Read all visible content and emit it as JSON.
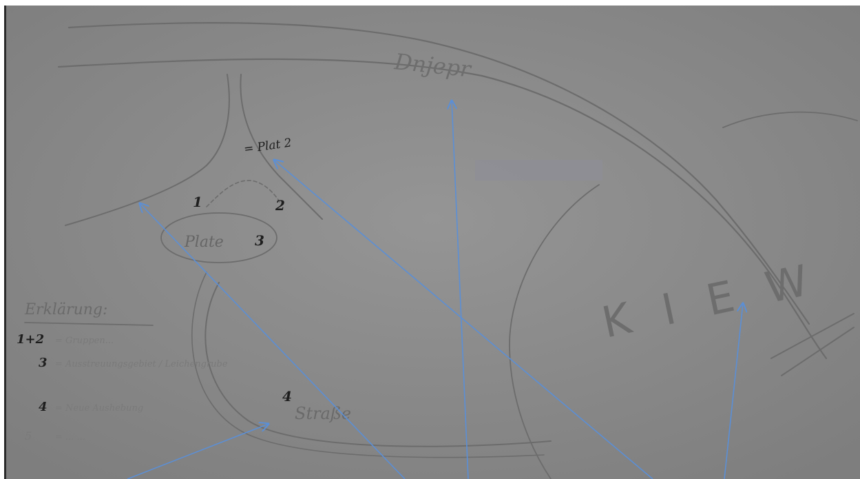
{
  "sketch": {
    "map_labels": {
      "river": "Dnjepr",
      "city": "KIEW",
      "plate": "Plate",
      "lower_label": "Straße",
      "apex_label": "= Plat 2"
    },
    "numbers": {
      "n1": "1",
      "n2": "2",
      "n3": "3",
      "n4": "4"
    },
    "legend": {
      "title": "Erklärung:",
      "entries": [
        {
          "key": "1+2",
          "text": "= Gruppen..."
        },
        {
          "key": "3",
          "text": "= Ausstreuungsgebiet / Leichengrube"
        },
        {
          "key": "4",
          "text": "= Neue Aushebung"
        },
        {
          "key": "5",
          "text": "= ... ..."
        }
      ]
    },
    "colors": {
      "paper": "#8b8b8b",
      "pencil": "#6c6c6c",
      "ink": "#1e1e1e",
      "arrow": "#5b8fd6"
    }
  }
}
